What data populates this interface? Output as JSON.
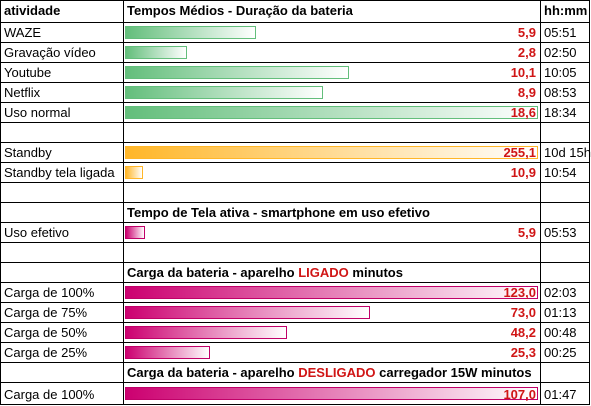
{
  "header": {
    "col1": "atividade",
    "col2": "Tempos Médios - Duração da bateria",
    "col3": "hh:mm"
  },
  "battery": [
    {
      "label": "WAZE",
      "value": 5.9,
      "value_text": "5,9",
      "time": "05:51"
    },
    {
      "label": "Gravação vídeo",
      "value": 2.8,
      "value_text": "2,8",
      "time": "02:50"
    },
    {
      "label": "Youtube",
      "value": 10.1,
      "value_text": "10,1",
      "time": "10:05"
    },
    {
      "label": "Netflix",
      "value": 8.9,
      "value_text": "8,9",
      "time": "08:53"
    },
    {
      "label": "Uso normal",
      "value": 18.6,
      "value_text": "18,6",
      "time": "18:34"
    }
  ],
  "standby": [
    {
      "label": "Standby",
      "value": 255.1,
      "value_text": "255,1",
      "time": "10d 15h"
    },
    {
      "label": "Standby tela ligada",
      "value": 10.9,
      "value_text": "10,9",
      "time": "10:54"
    }
  ],
  "screen_section": {
    "title": "Tempo de Tela ativa - smartphone em uso efetivo"
  },
  "screen": [
    {
      "label": "Uso efetivo",
      "value": 5.9,
      "value_text": "5,9",
      "time": "05:53"
    }
  ],
  "charge_on_section": {
    "title_pre": "Carga da bateria - aparelho ",
    "title_highlight": "LIGADO",
    "title_post": " minutos"
  },
  "charge_on": [
    {
      "label": "Carga de 100%",
      "value": 123.0,
      "value_text": "123,0",
      "time": "02:03"
    },
    {
      "label": "Carga de 75%",
      "value": 73.0,
      "value_text": "73,0",
      "time": "01:13"
    },
    {
      "label": "Carga de 50%",
      "value": 48.2,
      "value_text": "48,2",
      "time": "00:48"
    },
    {
      "label": "Carga de 25%",
      "value": 25.3,
      "value_text": "25,3",
      "time": "00:25"
    }
  ],
  "charge_off_section": {
    "title_pre": "Carga da bateria - aparelho ",
    "title_highlight": "DESLIGADO",
    "title_post": " carregador 15W minutos"
  },
  "charge_off": [
    {
      "label": "Carga de 100%",
      "value": 107.0,
      "value_text": "107,0",
      "time": "01:47"
    }
  ],
  "colors": {
    "green": "#63be7b",
    "orange": "#ffb628",
    "pink": "#cc0070",
    "value_red": "#d01515"
  }
}
